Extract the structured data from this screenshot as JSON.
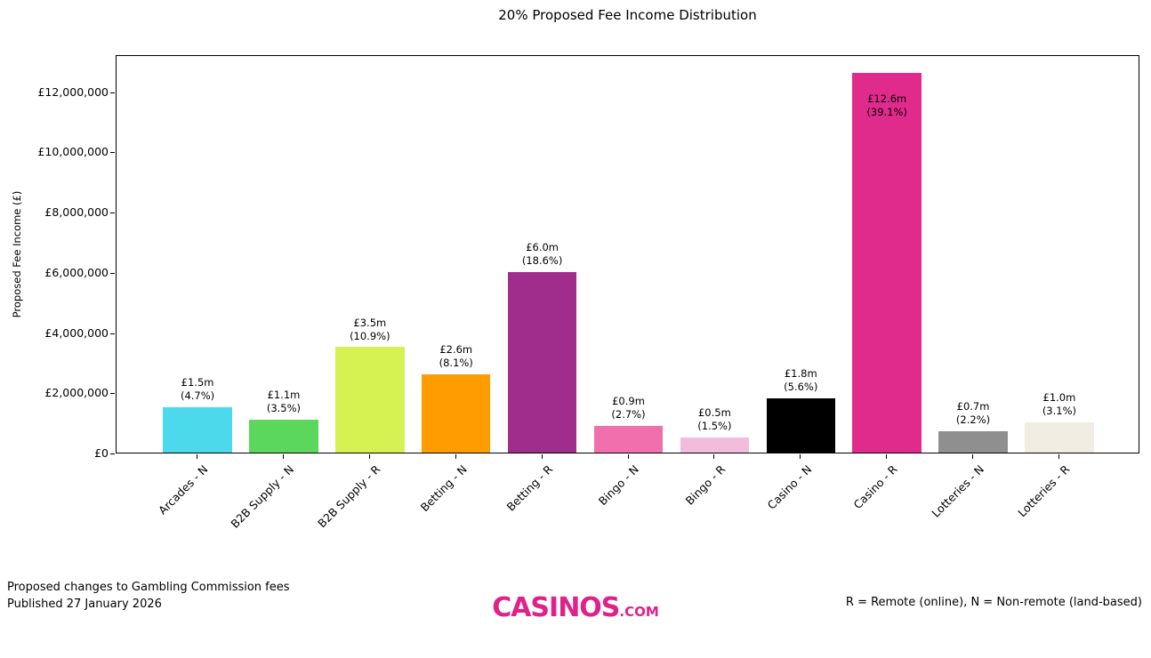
{
  "chart_data": {
    "type": "bar",
    "title": "20% Proposed Fee Income Distribution",
    "xlabel": "",
    "ylabel": "Proposed Fee Income (£)",
    "ylim": [
      0,
      13230000
    ],
    "grid": false,
    "legend": null,
    "categories": [
      "Arcades - N",
      "B2B Supply - N",
      "B2B Supply - R",
      "Betting - N",
      "Betting - R",
      "Bingo - N",
      "Bingo - R",
      "Casino - N",
      "Casino - R",
      "Lotteries - N",
      "Lotteries - R"
    ],
    "values": [
      1500000,
      1100000,
      3500000,
      2600000,
      6000000,
      900000,
      500000,
      1800000,
      12600000,
      700000,
      1000000
    ],
    "percentages": [
      4.7,
      3.5,
      10.9,
      8.1,
      18.6,
      2.7,
      1.5,
      5.6,
      39.1,
      2.2,
      3.1
    ],
    "annotations": [
      "£1.5m\n(4.7%)",
      "£1.1m\n(3.5%)",
      "£3.5m\n(10.9%)",
      "£2.6m\n(8.1%)",
      "£6.0m\n(18.6%)",
      "£0.9m\n(2.7%)",
      "£0.5m\n(1.5%)",
      "£1.8m\n(5.6%)",
      "£12.6m\n(39.1%)",
      "£0.7m\n(2.2%)",
      "£1.0m\n(3.1%)"
    ],
    "bar_colors": [
      "#4DD9EC",
      "#5BD75B",
      "#D6F152",
      "#FF9D00",
      "#A02C8C",
      "#F070AE",
      "#F2BCDC",
      "#000000",
      "#E02B8D",
      "#8F8F8F",
      "#F2EDE2"
    ],
    "yticks": [
      0,
      2000000,
      4000000,
      6000000,
      8000000,
      10000000,
      12000000
    ],
    "ytick_labels": [
      "£0",
      "£2,000,000",
      "£4,000,000",
      "£6,000,000",
      "£8,000,000",
      "£10,000,000",
      "£12,000,000"
    ]
  },
  "footer": {
    "left_line1": "Proposed changes to Gambling Commission fees",
    "left_line2": "Published 27 January 2026",
    "logo_text": "CASINOS",
    "logo_suffix": ".COM",
    "logo_color": "#E0218A",
    "right_text": "R = Remote (online), N = Non-remote (land-based)"
  }
}
